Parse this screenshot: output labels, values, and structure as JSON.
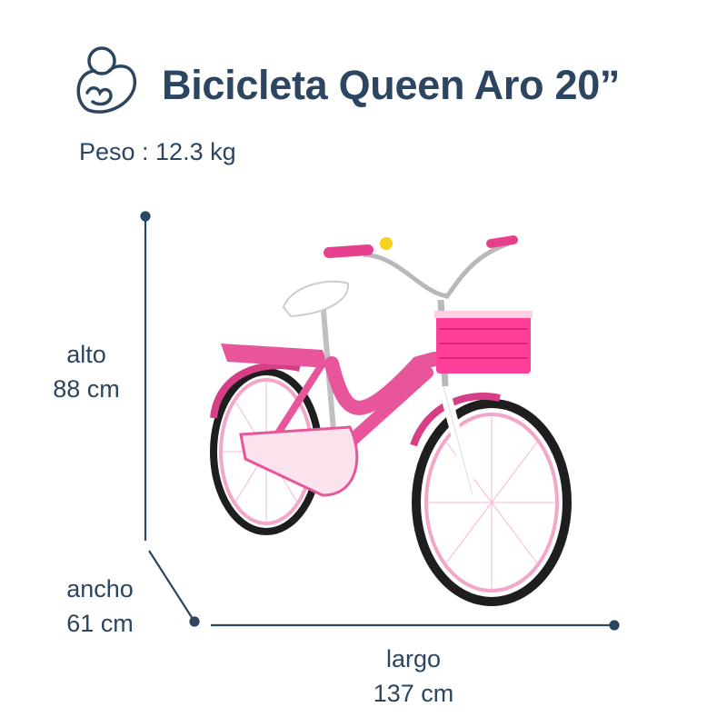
{
  "header": {
    "logo_icon": "mother-baby-logo-icon",
    "title": "Bicicleta Queen Aro 20”"
  },
  "weight": {
    "label": "Peso : 12.3 kg"
  },
  "dimensions": {
    "height": {
      "label": "alto",
      "value": "88 cm"
    },
    "width": {
      "label": "ancho",
      "value": "61 cm"
    },
    "length": {
      "label": "largo",
      "value": "137 cm"
    }
  },
  "colors": {
    "text": "#2c4560",
    "bike_pink": "#e8559a",
    "basket_pink": "#ff3f9a",
    "tire": "#1e1e1e"
  }
}
